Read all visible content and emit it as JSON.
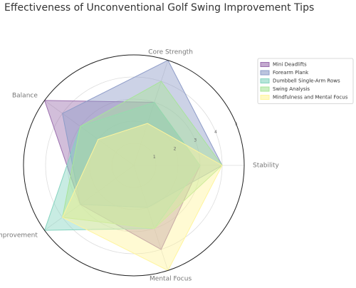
{
  "chart_data": {
    "type": "radar",
    "title": "Effectiveness of Unconventional Golf Swing Improvement Tips",
    "categories": [
      "Stability",
      "Core Strength",
      "Balance",
      "Swing Improvement",
      "Mental Focus"
    ],
    "series": [
      {
        "name": "Mini Deadlifts",
        "color": "#9b6fae",
        "values": [
          3,
          3,
          5,
          3,
          4
        ]
      },
      {
        "name": "Forearm Plank",
        "color": "#8e9cc8",
        "values": [
          4,
          5,
          4,
          3,
          2
        ]
      },
      {
        "name": "Dumbbell Single-Arm Rows",
        "color": "#86d4c0",
        "values": [
          3,
          3,
          3,
          5,
          3
        ]
      },
      {
        "name": "Swing Analysis",
        "color": "#a8e49a",
        "values": [
          4,
          4,
          3,
          4,
          3
        ]
      },
      {
        "name": "Mindfulness and Mental Focus",
        "color": "#fff59d",
        "values": [
          4,
          2,
          2,
          4,
          5
        ]
      }
    ],
    "ylim": [
      0,
      5
    ],
    "yticks": [
      1,
      2,
      3,
      4,
      5
    ],
    "grid": true,
    "legend": "upper right"
  }
}
